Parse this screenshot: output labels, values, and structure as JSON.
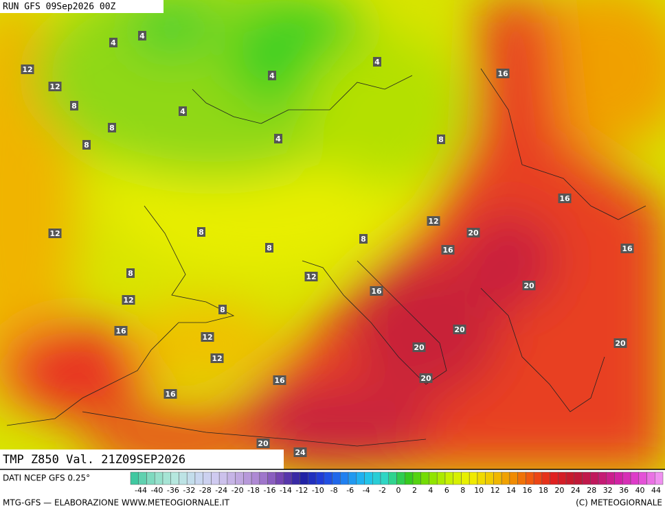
{
  "header": {
    "title": "RUN GFS 09Sep2026 00Z"
  },
  "map": {
    "field_label": "TMP Z850 Val. 21Z09SEP2026",
    "contour_labels": [
      4,
      4,
      12,
      12,
      8,
      4,
      4,
      16,
      4,
      8,
      8,
      4,
      8,
      16,
      12,
      12,
      8,
      20,
      8,
      8,
      16,
      16,
      8,
      12,
      20,
      16,
      12,
      8,
      16,
      20,
      12,
      20,
      20,
      12,
      20,
      16,
      16,
      20,
      24
    ]
  },
  "legend": {
    "source": "DATI NCEP GFS 0.25°",
    "scale_labels": [
      -44,
      -40,
      -36,
      -32,
      -28,
      -24,
      -20,
      -18,
      -16,
      -14,
      -12,
      -10,
      -8,
      -6,
      -4,
      -2,
      0,
      2,
      4,
      6,
      8,
      10,
      12,
      14,
      16,
      18,
      20,
      24,
      28,
      32,
      36,
      40,
      44
    ]
  },
  "footer": {
    "credit_left": "MTG-GFS — ELABORAZIONE WWW.METEOGIORNALE.IT",
    "credit_right": "(C) METEOGIORNALE"
  }
}
